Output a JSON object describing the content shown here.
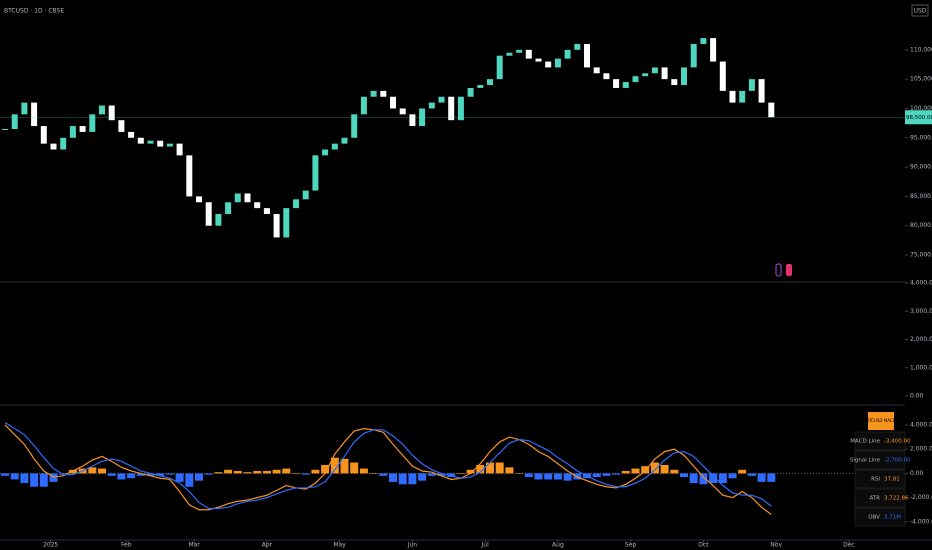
{
  "header": {
    "symbol": "BTCUSD · 1D · CBSE",
    "currency": "USD"
  },
  "price_pane": {
    "ylim": [
      70400,
      118500
    ],
    "yticks": [
      {
        "value": 110000,
        "label": "110,000.00"
      },
      {
        "value": 105000,
        "label": "105,000.00"
      },
      {
        "value": 100000,
        "label": "100,000.00"
      },
      {
        "value": 95000,
        "label": "95,000.00"
      },
      {
        "value": 90000,
        "label": "90,000.00"
      },
      {
        "value": 85000,
        "label": "85,000.00"
      },
      {
        "value": 80000,
        "label": "80,000.00"
      },
      {
        "value": 75000,
        "label": "75,000.00"
      }
    ],
    "up_color": "#4fd6bf",
    "down_color": "#ffffff",
    "closes": [
      96500,
      99000,
      101000,
      97000,
      94000,
      93000,
      95000,
      97000,
      96000,
      99000,
      100500,
      98000,
      96000,
      95000,
      94000,
      94500,
      93500,
      94000,
      92000,
      85000,
      84000,
      80000,
      82000,
      84000,
      85500,
      84000,
      83000,
      82000,
      78000,
      83000,
      84500,
      86000,
      92000,
      93000,
      94000,
      95000,
      99000,
      102000,
      103000,
      102000,
      100000,
      99000,
      97000,
      100000,
      101000,
      102000,
      98000,
      102000,
      103500,
      104000,
      105000,
      109000,
      109500,
      110000,
      108500,
      108000,
      107000,
      108500,
      110000,
      111000,
      107000,
      106000,
      105000,
      103500,
      104500,
      105500,
      106000,
      107000,
      105000,
      104000,
      107000,
      111000,
      112000,
      108000,
      103000,
      101000,
      103000,
      105000,
      101000,
      98500
    ],
    "last_price_label": "98,500.00"
  },
  "volume_pane": {
    "ylim": [
      0,
      4000000
    ],
    "yticks": [
      {
        "value": 4000000,
        "label": "4,000,000.00"
      },
      {
        "value": 3000000,
        "label": "3,000,000.00"
      },
      {
        "value": 2000000,
        "label": "2,000,000.00"
      },
      {
        "value": 1000000,
        "label": "1,000,000.00"
      },
      {
        "value": 0,
        "label": "0.00"
      }
    ]
  },
  "macd_pane": {
    "ylim": [
      -5500,
      5650
    ],
    "yticks": [
      {
        "value": 4000,
        "label": "4,000.00"
      },
      {
        "value": 2000,
        "label": "2,000.00"
      },
      {
        "value": 0,
        "label": "0.00"
      },
      {
        "value": -2000,
        "label": "-2,000.00"
      },
      {
        "value": -4000,
        "label": "-4,000.00"
      }
    ],
    "series": [
      {
        "name": "MACD Line",
        "color": "#f7941d",
        "values": [
          4000,
          3200,
          2400,
          1200,
          200,
          -300,
          -200,
          200,
          600,
          1100,
          1400,
          1000,
          500,
          200,
          0,
          -200,
          -400,
          -500,
          -1500,
          -2600,
          -3000,
          -3000,
          -2800,
          -2500,
          -2300,
          -2200,
          -2000,
          -1800,
          -1400,
          -1000,
          -1200,
          -1300,
          -800,
          0,
          1600,
          2600,
          3500,
          3700,
          3600,
          3400,
          2400,
          1500,
          600,
          200,
          100,
          -200,
          -500,
          -400,
          0,
          800,
          1800,
          2600,
          3000,
          2800,
          2400,
          1800,
          1400,
          800,
          200,
          -300,
          -600,
          -900,
          -1100,
          -1200,
          -900,
          -400,
          200,
          1200,
          1800,
          2000,
          1500,
          600,
          -300,
          -1000,
          -1800,
          -2000,
          -1500,
          -2000,
          -2800,
          -3400
        ]
      },
      {
        "name": "Signal Line",
        "color": "#2f6bff",
        "values": [
          4200,
          3700,
          3200,
          2300,
          1300,
          400,
          -100,
          -100,
          200,
          600,
          1000,
          1200,
          1000,
          600,
          200,
          0,
          -200,
          -400,
          -800,
          -1500,
          -2400,
          -2900,
          -2900,
          -2800,
          -2500,
          -2300,
          -2200,
          -2000,
          -1700,
          -1400,
          -1200,
          -1200,
          -1100,
          -700,
          300,
          1400,
          2600,
          3300,
          3600,
          3600,
          3100,
          2400,
          1500,
          800,
          300,
          0,
          -200,
          -400,
          -300,
          100,
          900,
          1700,
          2500,
          2800,
          2700,
          2300,
          1900,
          1300,
          800,
          200,
          -200,
          -600,
          -900,
          -1100,
          -1100,
          -800,
          -400,
          300,
          1100,
          1700,
          1800,
          1400,
          600,
          -200,
          -1000,
          -1600,
          -1800,
          -1800,
          -2100,
          -2700
        ]
      }
    ],
    "histogram": {
      "pos_color": "#f7941d",
      "neg_color": "#2f6bff",
      "values": [
        -200,
        -500,
        -800,
        -1100,
        -1100,
        -700,
        -100,
        300,
        400,
        500,
        400,
        -200,
        -500,
        -400,
        -200,
        -200,
        -200,
        -100,
        -700,
        -1100,
        -600,
        -100,
        100,
        300,
        200,
        100,
        200,
        200,
        300,
        400,
        0,
        -100,
        300,
        700,
        1300,
        1200,
        900,
        400,
        0,
        -200,
        -700,
        -900,
        -900,
        -600,
        -200,
        -200,
        -300,
        0,
        300,
        700,
        900,
        900,
        500,
        0,
        -300,
        -500,
        -500,
        -500,
        -600,
        -500,
        -400,
        -300,
        -200,
        -100,
        200,
        400,
        600,
        900,
        700,
        300,
        -300,
        -800,
        -900,
        -800,
        -800,
        -400,
        300,
        -200,
        -700,
        -700
      ]
    },
    "table": {
      "title": "BTCUSD MACD",
      "rows": [
        [
          "MACD Line",
          "-3,400.00"
        ],
        [
          "Signal Line",
          "-2,700.00"
        ],
        [
          "RSI",
          "37.81"
        ],
        [
          "ATR",
          "3,722.86"
        ],
        [
          "OBV",
          "3.71M"
        ]
      ]
    }
  },
  "x_axis": {
    "ticks": [
      {
        "value": 4.7,
        "label": "2025"
      },
      {
        "value": 12.5,
        "label": "Feb"
      },
      {
        "value": 19.5,
        "label": "Mar"
      },
      {
        "value": 27,
        "label": "Apr"
      },
      {
        "value": 34.5,
        "label": "May"
      },
      {
        "value": 42,
        "label": "Jun"
      },
      {
        "value": 49.5,
        "label": "Jul"
      },
      {
        "value": 57,
        "label": "Aug"
      },
      {
        "value": 64.5,
        "label": "Sep"
      },
      {
        "value": 72,
        "label": "Oct"
      },
      {
        "value": 79.5,
        "label": "Nov"
      },
      {
        "value": 87,
        "label": "Dec"
      }
    ]
  }
}
